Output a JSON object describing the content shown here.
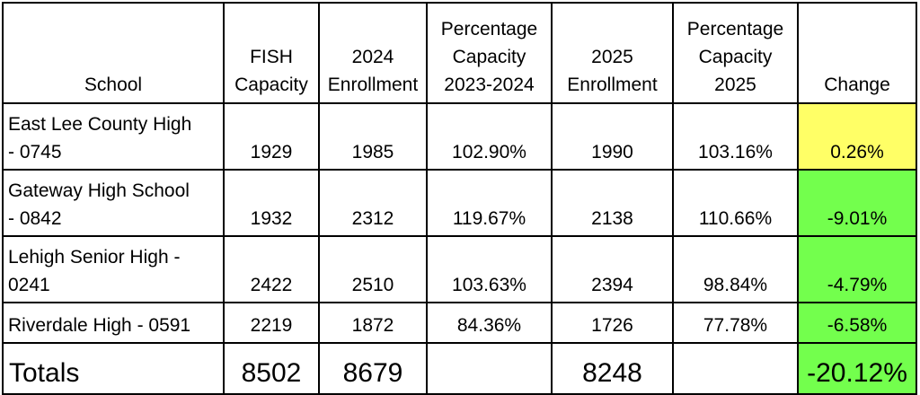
{
  "colors": {
    "border": "#000000",
    "change_up": "#ffff66",
    "change_down": "#73ff4d"
  },
  "headers": {
    "school": "School",
    "fish_capacity_line1": "FISH",
    "fish_capacity_line2": "Capacity",
    "enroll_2024_line1": "2024",
    "enroll_2024_line2": "Enrollment",
    "pct_2324_line1": "Percentage",
    "pct_2324_line2": "Capacity",
    "pct_2324_line3": "2023-2024",
    "enroll_2025_line1": "2025",
    "enroll_2025_line2": "Enrollment",
    "pct_2025_line1": "Percentage",
    "pct_2025_line2": "Capacity",
    "pct_2025_line3": "2025",
    "change": "Change"
  },
  "rows": [
    {
      "school_line1": "East Lee County High",
      "school_line2": "- 0745",
      "fish_capacity": "1929",
      "enroll_2024": "1985",
      "pct_2324": "102.90%",
      "enroll_2025": "1990",
      "pct_2025": "103.16%",
      "change": "0.26%",
      "change_color": "#ffff66"
    },
    {
      "school_line1": "Gateway High School",
      "school_line2": "- 0842",
      "fish_capacity": "1932",
      "enroll_2024": "2312",
      "pct_2324": "119.67%",
      "enroll_2025": "2138",
      "pct_2025": "110.66%",
      "change": "-9.01%",
      "change_color": "#73ff4d"
    },
    {
      "school_line1": "Lehigh Senior High -",
      "school_line2": "0241",
      "fish_capacity": "2422",
      "enroll_2024": "2510",
      "pct_2324": "103.63%",
      "enroll_2025": "2394",
      "pct_2025": "98.84%",
      "change": "-4.79%",
      "change_color": "#73ff4d"
    },
    {
      "school_line1": "Riverdale High - 0591",
      "school_line2": "",
      "fish_capacity": "2219",
      "enroll_2024": "1872",
      "pct_2324": "84.36%",
      "enroll_2025": "1726",
      "pct_2025": "77.78%",
      "change": "-6.58%",
      "change_color": "#73ff4d"
    }
  ],
  "totals": {
    "label": "Totals",
    "fish_capacity": "8502",
    "enroll_2024": "8679",
    "pct_2324": "",
    "enroll_2025": "8248",
    "pct_2025": "",
    "change": "-20.12%",
    "change_color": "#73ff4d"
  }
}
